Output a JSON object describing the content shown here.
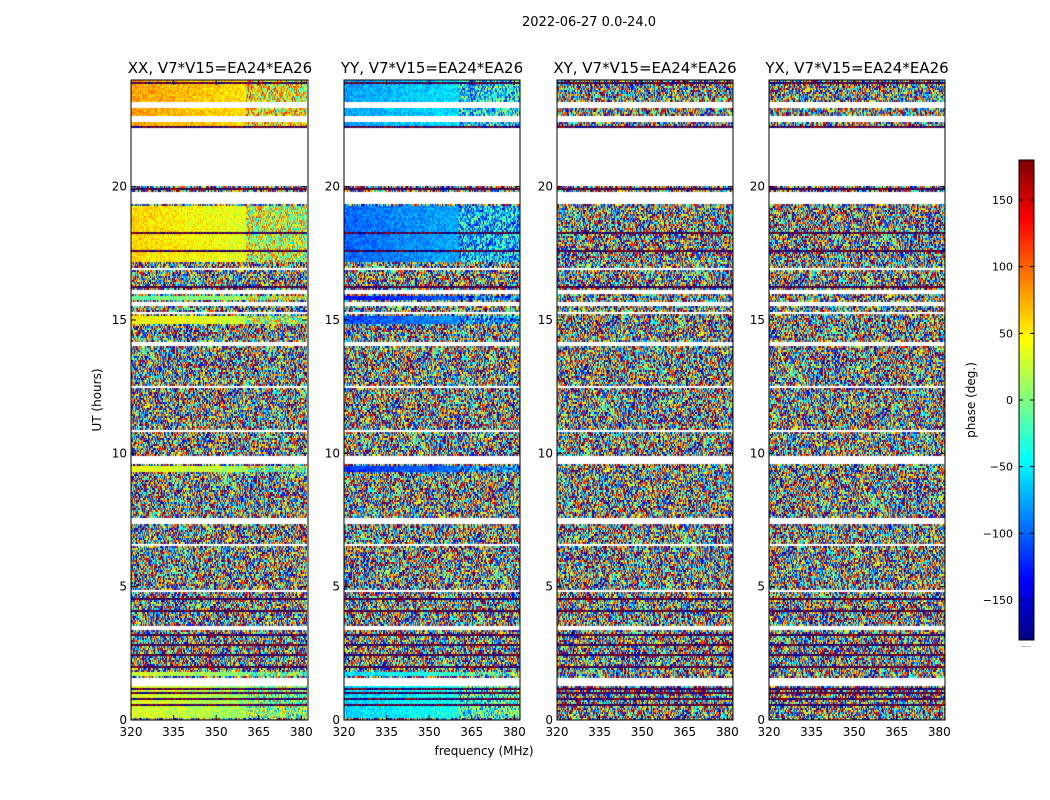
{
  "figure": {
    "suptitle": "2022-06-27 0.0-24.0"
  },
  "chart_data": {
    "type": "heatmap",
    "xlabel": "frequency (MHz)",
    "ylabel": "UT (hours)",
    "xlim": [
      320,
      382
    ],
    "ylim": [
      0,
      24
    ],
    "xticks": [
      320,
      335,
      350,
      365,
      380
    ],
    "yticks": [
      0,
      5,
      10,
      15,
      20
    ],
    "colorbar": {
      "label": "phase (deg.)",
      "range": [
        -180,
        180
      ],
      "ticks": [
        150,
        100,
        50,
        0,
        -50,
        -100,
        -150
      ],
      "tick_labels": [
        "150",
        "100",
        "50",
        "0",
        "−50",
        "−100",
        "−150"
      ],
      "colormap": "jet",
      "colors": [
        "#00007f",
        "#0000ff",
        "#007fff",
        "#00ffff",
        "#7fff7f",
        "#ffff00",
        "#ff7f00",
        "#ff0000",
        "#7f0000"
      ],
      "footnote": "....."
    },
    "panels": [
      {
        "title": "XX, V7*V15=EA24*EA26",
        "pol": "XX",
        "coherent": [
          [
            0.1,
            1.3,
            35
          ],
          [
            1.7,
            1.8,
            30
          ],
          [
            9.3,
            9.6,
            40
          ],
          [
            14.9,
            15.2,
            50
          ],
          [
            15.8,
            15.95,
            -10
          ],
          [
            17.2,
            19.3,
            60
          ],
          [
            22.2,
            24.0,
            80
          ]
        ]
      },
      {
        "title": "YY, V7*V15=EA24*EA26",
        "pol": "YY",
        "coherent": [
          [
            0.1,
            1.3,
            -60
          ],
          [
            1.7,
            1.8,
            -55
          ],
          [
            9.3,
            9.6,
            -120
          ],
          [
            14.9,
            15.2,
            -110
          ],
          [
            15.8,
            15.95,
            -130
          ],
          [
            17.2,
            19.3,
            -100
          ],
          [
            22.2,
            24.0,
            -80
          ]
        ]
      },
      {
        "title": "XY, V7*V15=EA24*EA26",
        "pol": "XY",
        "coherent": []
      },
      {
        "title": "YX, V7*V15=EA24*EA26",
        "pol": "YX",
        "coherent": []
      }
    ],
    "gaps_hours": [
      [
        0.3,
        0.35
      ],
      [
        1.35,
        1.6
      ],
      [
        3.4,
        3.55
      ],
      [
        4.85,
        4.9
      ],
      [
        6.6,
        6.65
      ],
      [
        7.4,
        7.6
      ],
      [
        9.65,
        9.9
      ],
      [
        10.85,
        10.9
      ],
      [
        12.5,
        12.55
      ],
      [
        14.05,
        14.2
      ],
      [
        15.25,
        15.35
      ],
      [
        15.6,
        15.7
      ],
      [
        16.05,
        16.15
      ],
      [
        16.9,
        16.95
      ],
      [
        19.4,
        19.85
      ],
      [
        20.05,
        22.2
      ],
      [
        22.5,
        22.7
      ],
      [
        23.0,
        23.2
      ]
    ],
    "dark_rows_hours": [
      0.6,
      0.85,
      1.05,
      1.2,
      2.05,
      2.45,
      2.85,
      3.2,
      4.15,
      4.55,
      16.3,
      17.6,
      18.3,
      19.95,
      22.25,
      23.9
    ]
  }
}
